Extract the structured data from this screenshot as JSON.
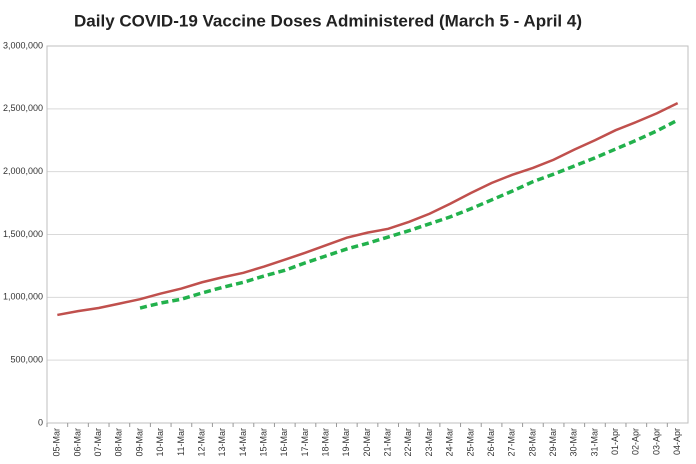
{
  "chart_data": {
    "type": "line",
    "title": "Daily COVID-19 Vaccine Doses Administered (March 5 - April 4)",
    "categories": [
      "05-Mar",
      "06-Mar",
      "07-Mar",
      "08-Mar",
      "09-Mar",
      "10-Mar",
      "11-Mar",
      "12-Mar",
      "13-Mar",
      "14-Mar",
      "15-Mar",
      "16-Mar",
      "17-Mar",
      "18-Mar",
      "19-Mar",
      "20-Mar",
      "21-Mar",
      "22-Mar",
      "23-Mar",
      "24-Mar",
      "25-Mar",
      "26-Mar",
      "27-Mar",
      "28-Mar",
      "29-Mar",
      "30-Mar",
      "31-Mar",
      "01-Apr",
      "02-Apr",
      "03-Apr",
      "04-Apr"
    ],
    "series": [
      {
        "color": "#c0504d",
        "dashed": false,
        "values": [
          860000,
          890000,
          915000,
          950000,
          985000,
          1030000,
          1070000,
          1120000,
          1160000,
          1195000,
          1245000,
          1300000,
          1355000,
          1415000,
          1475000,
          1515000,
          1545000,
          1600000,
          1665000,
          1745000,
          1830000,
          1910000,
          1975000,
          2030000,
          2095000,
          2175000,
          2250000,
          2330000,
          2395000,
          2465000,
          2545000
        ]
      },
      {
        "color": "#22b14c",
        "dashed": true,
        "values": [
          null,
          null,
          null,
          null,
          915000,
          955000,
          985000,
          1035000,
          1080000,
          1120000,
          1170000,
          1215000,
          1275000,
          1330000,
          1385000,
          1430000,
          1480000,
          1530000,
          1585000,
          1640000,
          1705000,
          1775000,
          1845000,
          1920000,
          1980000,
          2045000,
          2110000,
          2180000,
          2250000,
          2325000,
          2410000
        ]
      }
    ],
    "ylim": [
      0,
      3000000
    ],
    "yticks": [
      0,
      {
        "value": 500000,
        "label": "500,000"
      },
      {
        "value": 1000000,
        "label": "1,000,000"
      },
      {
        "value": 1500000,
        "label": "1,500,000"
      },
      {
        "value": 2000000,
        "label": "2,000,000"
      },
      {
        "value": 2500000,
        "label": "2,500,000"
      },
      {
        "value": 3000000,
        "label": "3,000,000"
      }
    ],
    "grid": true
  }
}
